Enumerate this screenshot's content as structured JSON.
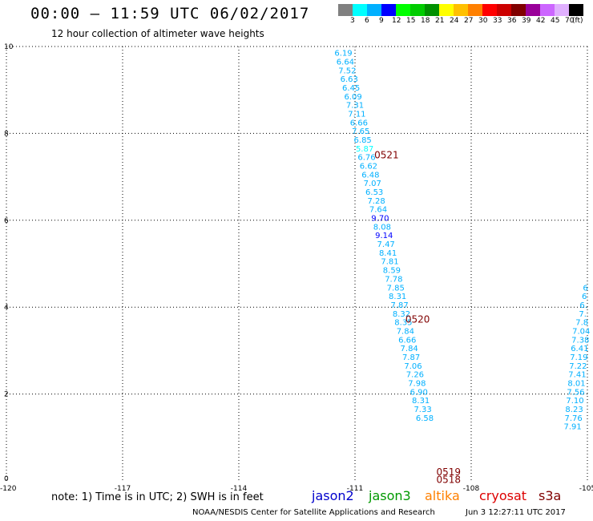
{
  "title": "00:00 – 11:59 UTC 06/02/2017",
  "subtitle": "12 hour collection of altimeter wave heights",
  "legend": {
    "colors": [
      "#808080",
      "#00ffff",
      "#00b0ff",
      "#0000ff",
      "#00ff00",
      "#00cc00",
      "#009000",
      "#ffff00",
      "#ffc000",
      "#ff8000",
      "#ff0000",
      "#cc0000",
      "#800000",
      "#990099",
      "#cc66ff",
      "#e0b0ff",
      "#000000"
    ],
    "labels": [
      "3",
      "6",
      "9",
      "12",
      "15",
      "18",
      "21",
      "24",
      "27",
      "30",
      "33",
      "36",
      "39",
      "42",
      "45",
      "70"
    ],
    "unit": "(ft)"
  },
  "note": "note: 1) Time is in UTC; 2) SWH is in feet",
  "satellites": [
    {
      "name": "jason2",
      "color": "#0000cc"
    },
    {
      "name": "jason3",
      "color": "#009900"
    },
    {
      "name": "altika",
      "color": "#ff8000"
    },
    {
      "name": "cryosat",
      "color": "#dd0000"
    },
    {
      "name": "s3a",
      "color": "#800000"
    }
  ],
  "credit": "NOAA/NESDIS Center for Satellite Applications and Research",
  "generated": "Jun  3 12:27:11 UTC 2017",
  "chart_data": {
    "type": "scatter",
    "xlim": [
      -120,
      -105
    ],
    "ylim": [
      0,
      10
    ],
    "x_ticks": [
      "-120",
      "-117",
      "-114",
      "-111",
      "-108",
      "-105"
    ],
    "y_ticks": [
      "0",
      "2",
      "4",
      "6",
      "8",
      "10"
    ],
    "grid": true,
    "tracks": [
      {
        "name": "track-1",
        "points": [
          {
            "x": -111.3,
            "y": 9.86,
            "v": "6.19"
          },
          {
            "x": -111.25,
            "y": 9.66,
            "v": "6.64"
          },
          {
            "x": -111.2,
            "y": 9.46,
            "v": "7.52"
          },
          {
            "x": -111.15,
            "y": 9.26,
            "v": "6.63"
          },
          {
            "x": -111.1,
            "y": 9.06,
            "v": "6.45"
          },
          {
            "x": -111.05,
            "y": 8.86,
            "v": "6.09"
          },
          {
            "x": -111.0,
            "y": 8.66,
            "v": "7.31"
          },
          {
            "x": -110.95,
            "y": 8.46,
            "v": "7.11"
          },
          {
            "x": -110.9,
            "y": 8.26,
            "v": "6.66"
          },
          {
            "x": -110.85,
            "y": 8.06,
            "v": "7.65"
          },
          {
            "x": -110.8,
            "y": 7.86,
            "v": "6.85"
          },
          {
            "x": -110.75,
            "y": 7.66,
            "v": "5.87"
          },
          {
            "x": -110.7,
            "y": 7.46,
            "v": "6.76"
          },
          {
            "x": -110.65,
            "y": 7.26,
            "v": "6.62"
          },
          {
            "x": -110.6,
            "y": 7.06,
            "v": "6.48"
          },
          {
            "x": -110.55,
            "y": 6.86,
            "v": "7.07"
          },
          {
            "x": -110.5,
            "y": 6.66,
            "v": "6.53"
          },
          {
            "x": -110.45,
            "y": 6.46,
            "v": "7.28"
          },
          {
            "x": -110.4,
            "y": 6.26,
            "v": "7.64"
          },
          {
            "x": -110.35,
            "y": 6.06,
            "v": "9.70"
          },
          {
            "x": -110.3,
            "y": 5.86,
            "v": "8.08"
          },
          {
            "x": -110.25,
            "y": 5.66,
            "v": "9.14"
          },
          {
            "x": -110.2,
            "y": 5.46,
            "v": "7.47"
          },
          {
            "x": -110.15,
            "y": 5.26,
            "v": "8.41"
          },
          {
            "x": -110.1,
            "y": 5.06,
            "v": "7.81"
          },
          {
            "x": -110.05,
            "y": 4.86,
            "v": "8.59"
          },
          {
            "x": -110.0,
            "y": 4.66,
            "v": "7.78"
          },
          {
            "x": -109.95,
            "y": 4.46,
            "v": "7.85"
          },
          {
            "x": -109.9,
            "y": 4.26,
            "v": "8.31"
          },
          {
            "x": -109.85,
            "y": 4.06,
            "v": "7.87"
          },
          {
            "x": -109.8,
            "y": 3.86,
            "v": "8.32"
          },
          {
            "x": -109.75,
            "y": 3.66,
            "v": "8.35"
          },
          {
            "x": -109.7,
            "y": 3.46,
            "v": "7.84"
          },
          {
            "x": -109.65,
            "y": 3.26,
            "v": "6.66"
          },
          {
            "x": -109.6,
            "y": 3.06,
            "v": "7.84"
          },
          {
            "x": -109.55,
            "y": 2.86,
            "v": "7.87"
          },
          {
            "x": -109.5,
            "y": 2.66,
            "v": "7.06"
          },
          {
            "x": -109.45,
            "y": 2.46,
            "v": "7.26"
          },
          {
            "x": -109.4,
            "y": 2.26,
            "v": "7.98"
          },
          {
            "x": -109.35,
            "y": 2.06,
            "v": "6.90"
          },
          {
            "x": -109.3,
            "y": 1.86,
            "v": "8.31"
          },
          {
            "x": -109.25,
            "y": 1.66,
            "v": "7.33"
          },
          {
            "x": -109.2,
            "y": 1.46,
            "v": "6.58"
          }
        ]
      },
      {
        "name": "track-2",
        "points": [
          {
            "x": -105.05,
            "y": 4.46,
            "v": "6"
          },
          {
            "x": -105.08,
            "y": 4.26,
            "v": "6"
          },
          {
            "x": -105.1,
            "y": 4.06,
            "v": "6."
          },
          {
            "x": -105.12,
            "y": 3.86,
            "v": "7."
          },
          {
            "x": -105.14,
            "y": 3.66,
            "v": "7.8"
          },
          {
            "x": -105.16,
            "y": 3.46,
            "v": "7.04"
          },
          {
            "x": -105.18,
            "y": 3.26,
            "v": "7.38"
          },
          {
            "x": -105.2,
            "y": 3.06,
            "v": "6.41"
          },
          {
            "x": -105.22,
            "y": 2.86,
            "v": "7.19"
          },
          {
            "x": -105.24,
            "y": 2.66,
            "v": "7.22"
          },
          {
            "x": -105.26,
            "y": 2.46,
            "v": "7.41"
          },
          {
            "x": -105.28,
            "y": 2.26,
            "v": "8.01"
          },
          {
            "x": -105.3,
            "y": 2.06,
            "v": "7.56"
          },
          {
            "x": -105.32,
            "y": 1.86,
            "v": "7.10"
          },
          {
            "x": -105.34,
            "y": 1.66,
            "v": "8.23"
          },
          {
            "x": -105.36,
            "y": 1.46,
            "v": "7.76"
          },
          {
            "x": -105.38,
            "y": 1.26,
            "v": "7.91"
          }
        ]
      }
    ],
    "time_labels": [
      {
        "text": "0521",
        "x": -110.5,
        "y": 7.5
      },
      {
        "text": "0520",
        "x": -109.7,
        "y": 3.72
      },
      {
        "text": "0519",
        "x": -108.9,
        "y": 0.2
      },
      {
        "text": "0518",
        "x": -108.9,
        "y": 0.03
      }
    ]
  }
}
